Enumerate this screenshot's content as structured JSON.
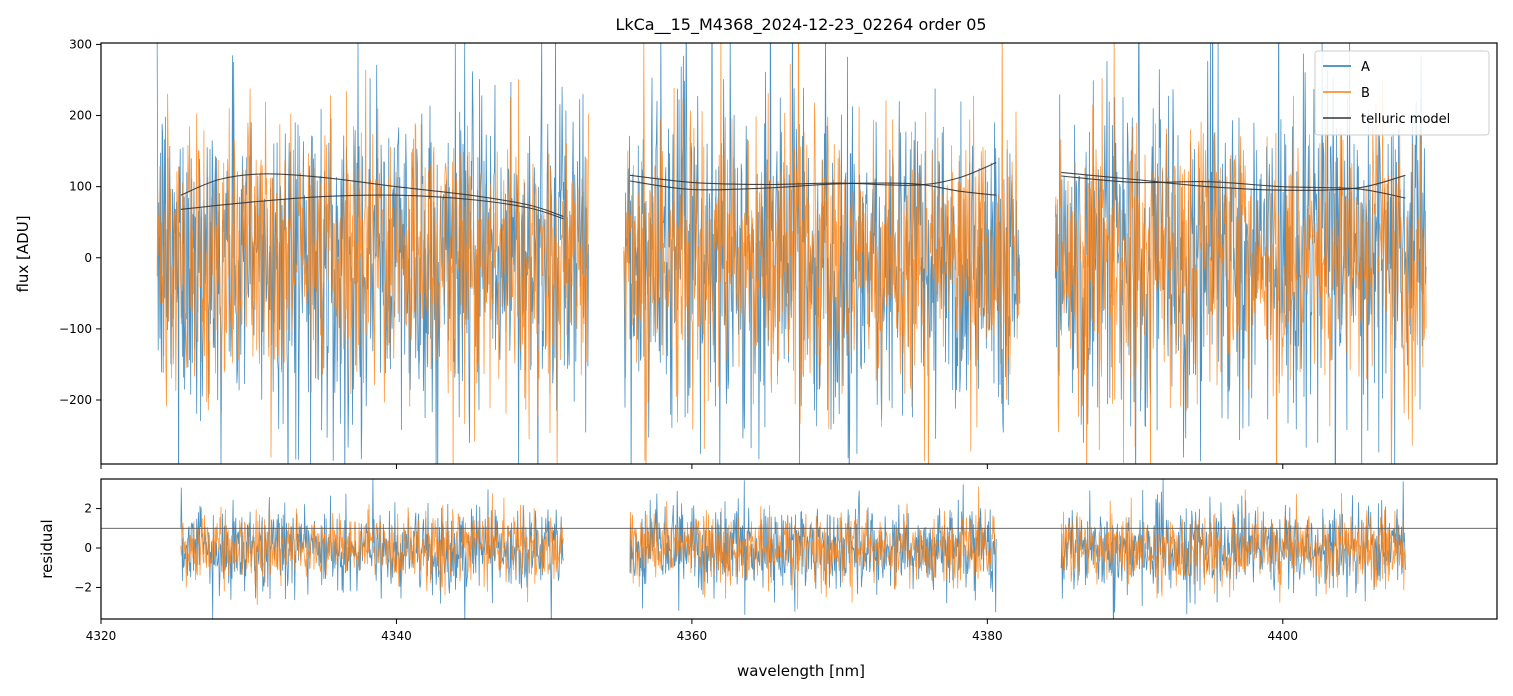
{
  "chart_data": [
    {
      "type": "line",
      "panel": "flux",
      "title": "LkCa__15_M4368_2024-12-23_02264  order 05",
      "xlabel": "",
      "ylabel": "flux [ADU]",
      "xlim": [
        4320,
        4414.5
      ],
      "ylim": [
        -290,
        302
      ],
      "xticks": [
        4320,
        4340,
        4360,
        4380,
        4400
      ],
      "yticks": [
        -200,
        -100,
        0,
        100,
        200,
        300
      ],
      "ytick_labels": [
        "−200",
        "−100",
        "0",
        "100",
        "200",
        "300"
      ],
      "segments": [
        [
          4323.8,
          4353.0
        ],
        [
          4355.4,
          4382.2
        ],
        [
          4384.6,
          4409.7
        ]
      ],
      "series": [
        {
          "name": "A",
          "color": "#1f77b4",
          "noise_sigma": 115
        },
        {
          "name": "B",
          "color": "#ff7f0e",
          "noise_sigma": 95
        },
        {
          "name": "telluric model",
          "color": "#333333",
          "lines": [
            {
              "x": [
                4325.4,
                4328,
                4331,
                4335,
                4340,
                4345,
                4349,
                4351.3
              ],
              "y": [
                88,
                110,
                118,
                113,
                100,
                88,
                74,
                58
              ]
            },
            {
              "x": [
                4325.4,
                4330,
                4335,
                4340,
                4345,
                4349,
                4351.3
              ],
              "y": [
                68,
                78,
                86,
                88,
                82,
                70,
                55
              ]
            },
            {
              "x": [
                4355.8,
                4360,
                4365,
                4370,
                4375,
                4378,
                4380.6
              ],
              "y": [
                116,
                106,
                103,
                105,
                102,
                112,
                134
              ]
            },
            {
              "x": [
                4355.8,
                4360,
                4365,
                4370,
                4375,
                4378,
                4380.6
              ],
              "y": [
                108,
                96,
                98,
                104,
                104,
                94,
                88
              ]
            },
            {
              "x": [
                4385,
                4390,
                4395,
                4400,
                4405,
                4408.3
              ],
              "y": [
                120,
                110,
                100,
                95,
                98,
                116
              ]
            },
            {
              "x": [
                4385,
                4390,
                4395,
                4400,
                4405,
                4408.3
              ],
              "y": [
                115,
                106,
                107,
                100,
                97,
                84
              ]
            }
          ]
        }
      ],
      "legend": {
        "location": "top-right",
        "entries": [
          "A",
          "B",
          "telluric model"
        ]
      }
    },
    {
      "type": "line",
      "panel": "residual",
      "xlabel": "wavelength [nm]",
      "ylabel": "residual",
      "xlim": [
        4320,
        4414.5
      ],
      "ylim": [
        -3.6,
        3.5
      ],
      "xticks": [
        4320,
        4340,
        4360,
        4380,
        4400
      ],
      "xtick_labels": [
        "4320",
        "4340",
        "4360",
        "4380",
        "4400"
      ],
      "yticks": [
        -2,
        0,
        2
      ],
      "ytick_labels": [
        "−2",
        "0",
        "2"
      ],
      "hline_y": 1,
      "segments": [
        [
          4325.4,
          4351.3
        ],
        [
          4355.8,
          4380.6
        ],
        [
          4385.0,
          4408.3
        ]
      ],
      "series": [
        {
          "name": "A",
          "color": "#1f77b4",
          "noise_sigma": 1.05
        },
        {
          "name": "B",
          "color": "#ff7f0e",
          "noise_sigma": 0.9
        }
      ]
    }
  ]
}
